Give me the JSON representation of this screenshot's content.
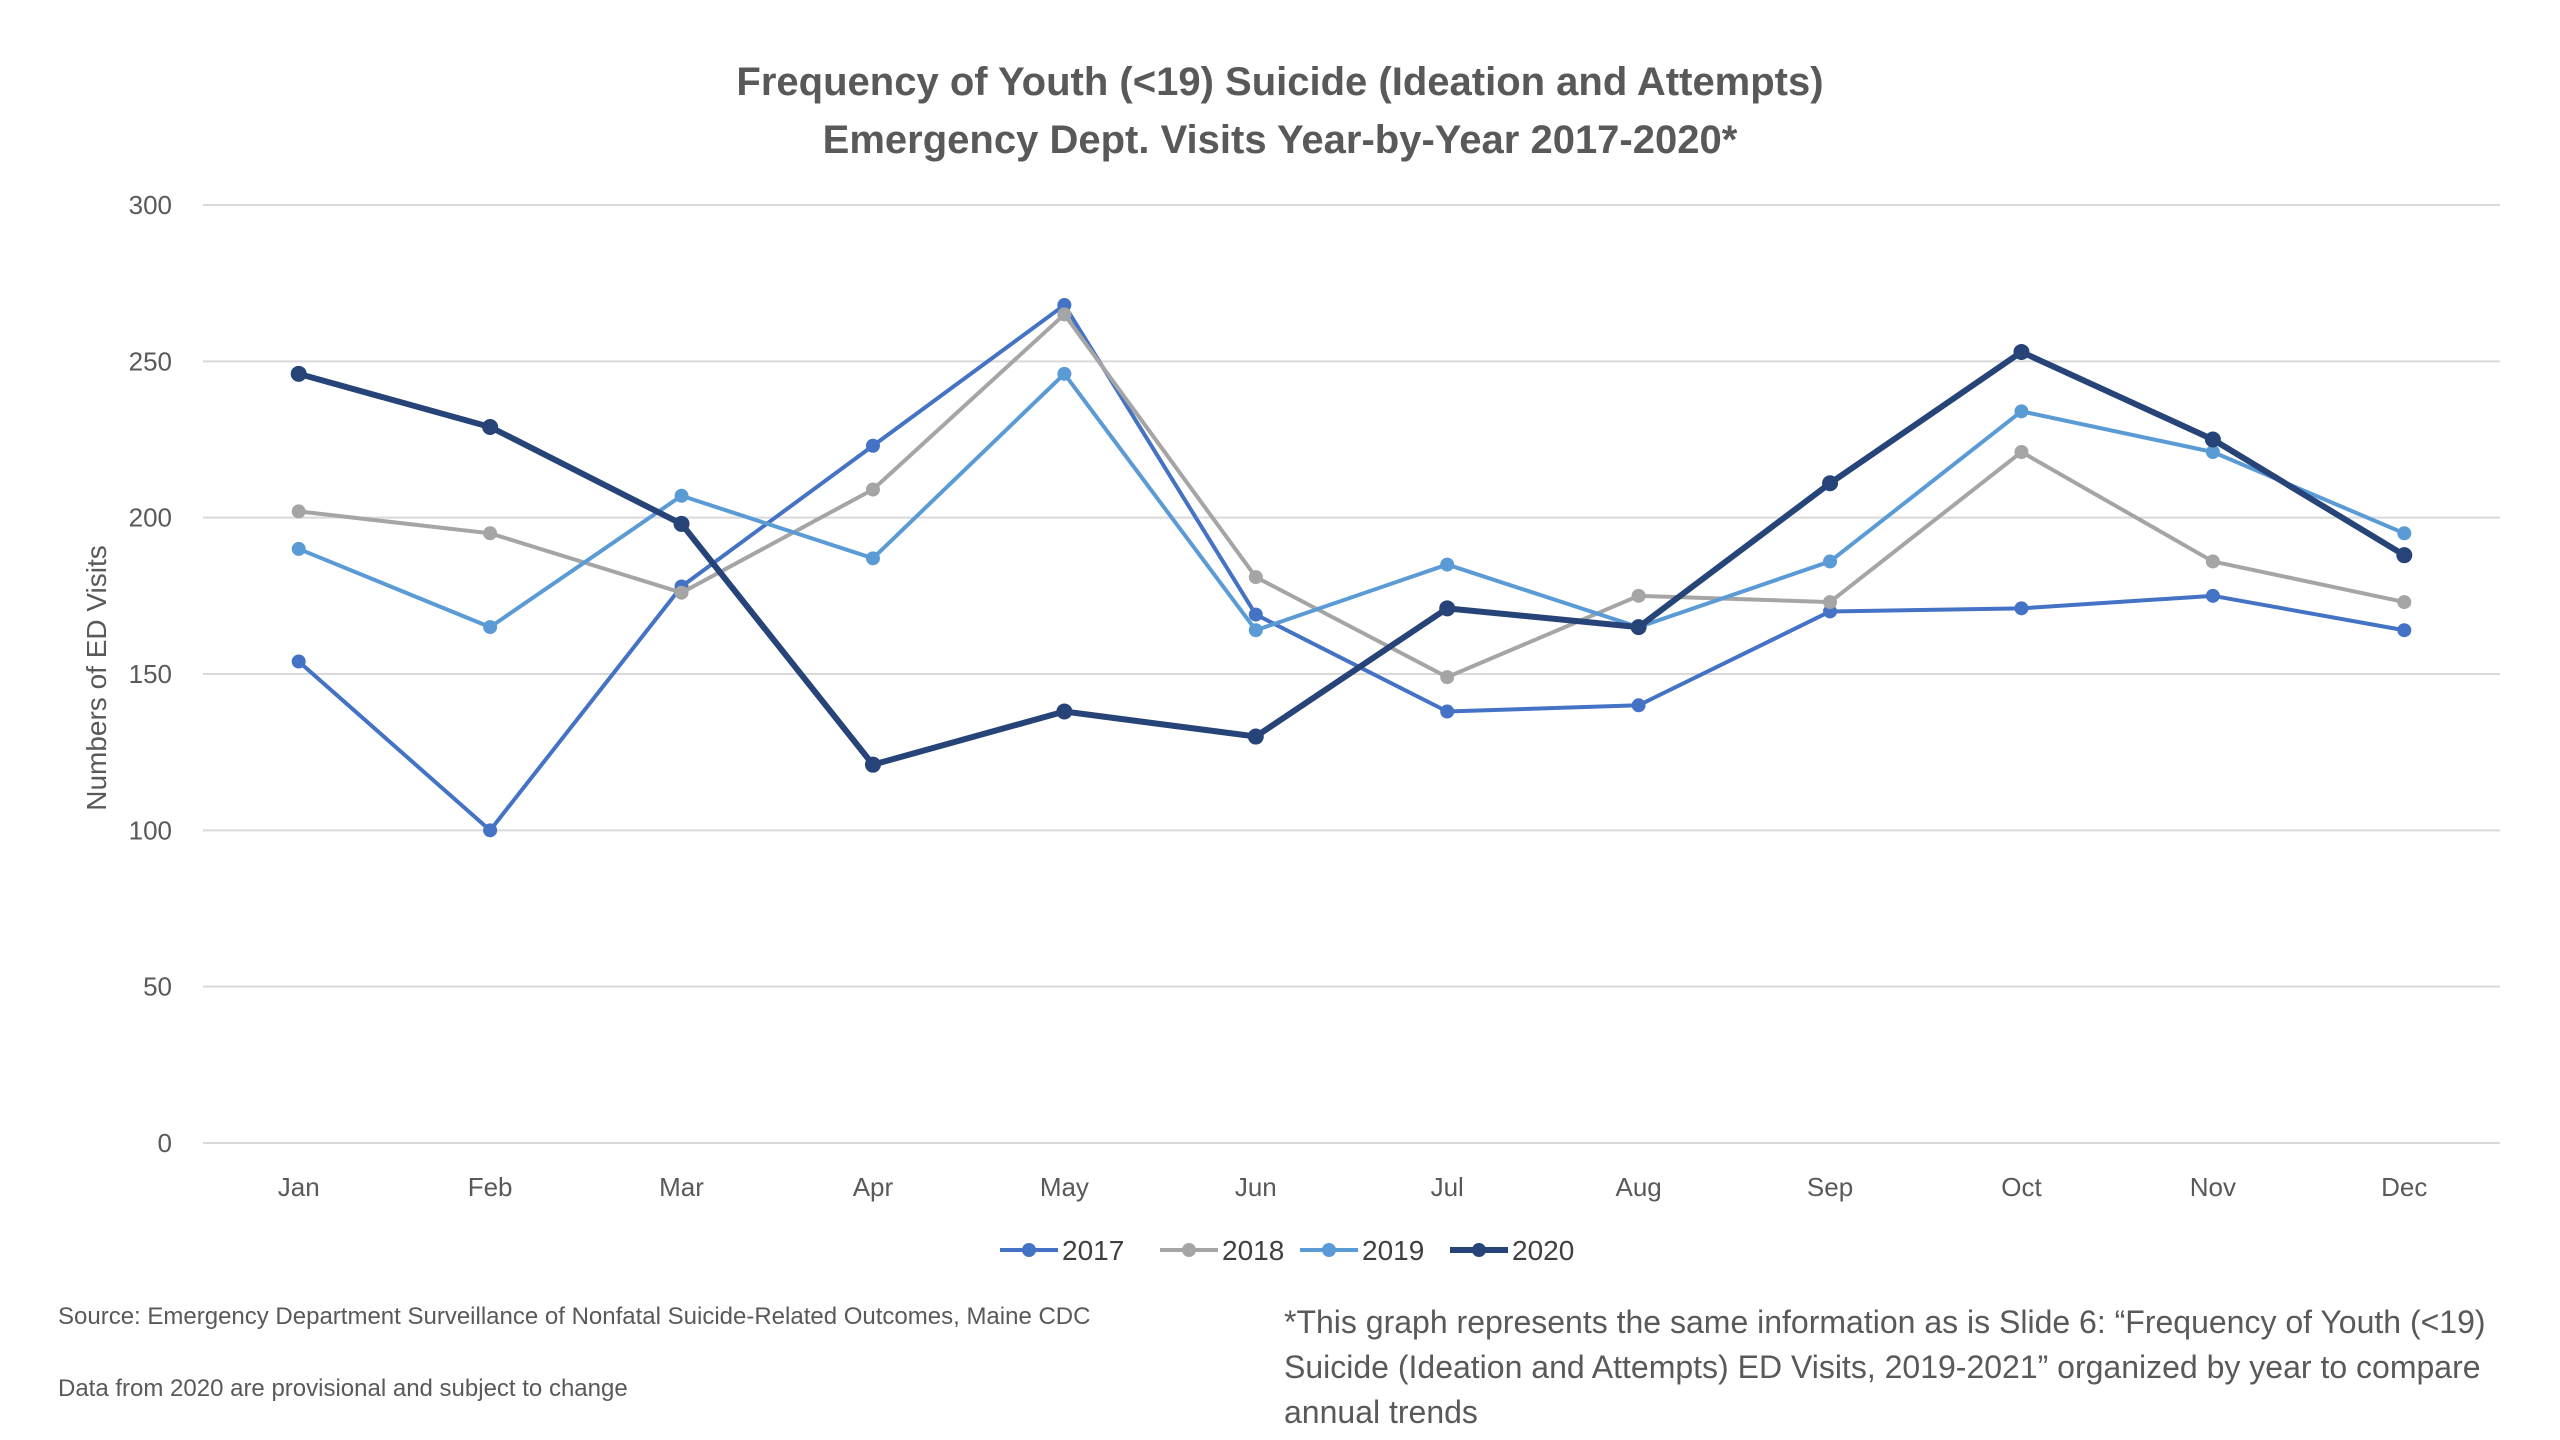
{
  "chart_data": {
    "type": "line",
    "title": "Frequency of Youth (<19) Suicide (Ideation and Attempts)",
    "subtitle": "Emergency Dept. Visits Year-by-Year 2017-2020*",
    "xlabel": "",
    "ylabel": "Numbers of ED Visits",
    "ylim": [
      0,
      300
    ],
    "yticks": [
      "0",
      "50",
      "100",
      "150",
      "200",
      "250",
      "300"
    ],
    "categories": [
      "Jan",
      "Feb",
      "Mar",
      "Apr",
      "May",
      "Jun",
      "Jul",
      "Aug",
      "Sep",
      "Oct",
      "Nov",
      "Dec"
    ],
    "grid": true,
    "legend_position": "bottom",
    "series": [
      {
        "name": "2017",
        "color": "#4472c4",
        "values": [
          154,
          100,
          178,
          223,
          268,
          169,
          138,
          140,
          170,
          171,
          175,
          164
        ]
      },
      {
        "name": "2018",
        "color": "#a5a5a5",
        "values": [
          202,
          195,
          176,
          209,
          265,
          181,
          149,
          175,
          173,
          221,
          186,
          173
        ]
      },
      {
        "name": "2019",
        "color": "#5b9bd5",
        "values": [
          190,
          165,
          207,
          187,
          246,
          164,
          185,
          165,
          186,
          234,
          221,
          195
        ]
      },
      {
        "name": "2020",
        "color": "#264478",
        "values": [
          246,
          229,
          198,
          121,
          138,
          130,
          171,
          165,
          211,
          253,
          225,
          188
        ]
      }
    ]
  },
  "notes": {
    "source": "Source:  Emergency Department Surveillance of Nonfatal Suicide-Related Outcomes, Maine CDC",
    "provisional": "Data from 2020 are provisional and subject to change",
    "asterisk": "*This graph represents the same information as is Slide 6: “Frequency of Youth (<19) Suicide (Ideation and Attempts)  ED Visits, 2019-2021” organized by year to compare annual trends"
  }
}
